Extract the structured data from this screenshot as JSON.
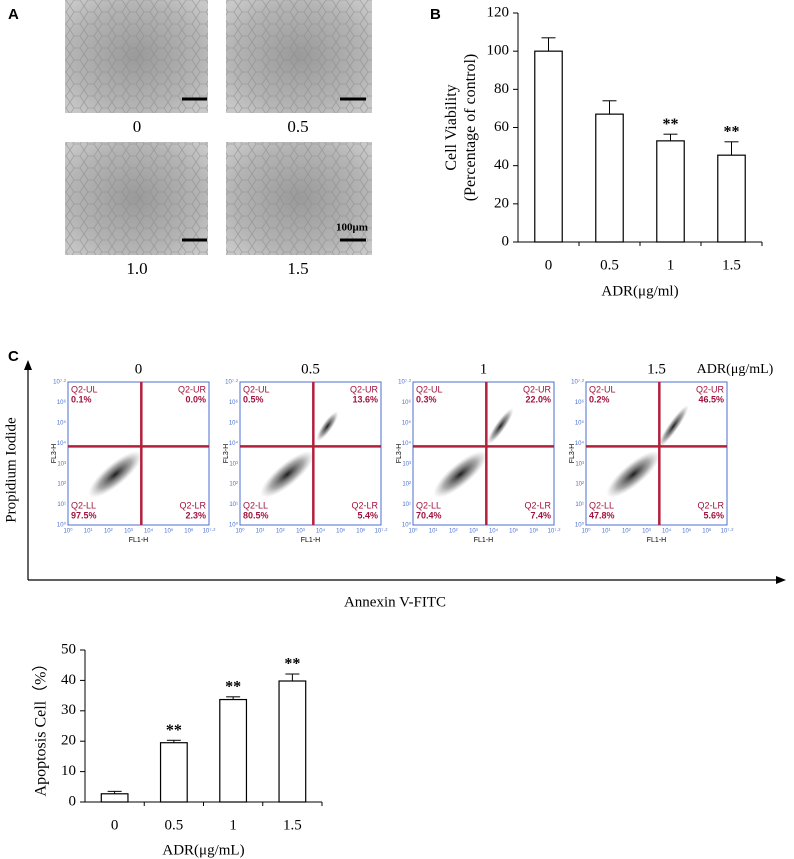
{
  "panel_A": {
    "letter": "A",
    "doses": [
      "0",
      "0.5",
      "1.0",
      "1.5"
    ],
    "scale_bar": "100μm"
  },
  "flow_panel": {
    "letter": "C",
    "dose_header": "ADR(μg/mL)",
    "y_axis": "Propidium Iodide",
    "x_axis": "Annexin V-FITC",
    "plot_y_label": "FL3-H",
    "plot_x_label": "FL1-H",
    "ticks": [
      "10⁰",
      "10¹",
      "10²",
      "10³",
      "10⁴",
      "10⁵",
      "10⁶",
      "10⁷·²"
    ],
    "plots": [
      {
        "dose": "0",
        "quadrants": {
          "UL": {
            "name": "Q2-UL",
            "value": "0.1%"
          },
          "UR": {
            "name": "Q2-UR",
            "value": "0.0%"
          },
          "LL": {
            "name": "Q2-LL",
            "value": "97.5%"
          },
          "LR": {
            "name": "Q2-LR",
            "value": "2.3%"
          }
        }
      },
      {
        "dose": "0.5",
        "quadrants": {
          "UL": {
            "name": "Q2-UL",
            "value": "0.5%"
          },
          "UR": {
            "name": "Q2-UR",
            "value": "13.6%"
          },
          "LL": {
            "name": "Q2-LL",
            "value": "80.5%"
          },
          "LR": {
            "name": "Q2-LR",
            "value": "5.4%"
          }
        }
      },
      {
        "dose": "1",
        "quadrants": {
          "UL": {
            "name": "Q2-UL",
            "value": "0.3%"
          },
          "UR": {
            "name": "Q2-UR",
            "value": "22.0%"
          },
          "LL": {
            "name": "Q2-LL",
            "value": "70.4%"
          },
          "LR": {
            "name": "Q2-LR",
            "value": "7.4%"
          }
        }
      },
      {
        "dose": "1.5",
        "quadrants": {
          "UL": {
            "name": "Q2-UL",
            "value": "0.2%"
          },
          "UR": {
            "name": "Q2-UR",
            "value": "46.5%"
          },
          "LL": {
            "name": "Q2-LL",
            "value": "47.8%"
          },
          "LR": {
            "name": "Q2-LR",
            "value": "5.6%"
          }
        }
      }
    ]
  },
  "chart_data": [
    {
      "type": "bar",
      "letter": "B",
      "categories": [
        "0",
        "0.5",
        "1",
        "1.5"
      ],
      "values": [
        100,
        67,
        53,
        45.5
      ],
      "errors": [
        7,
        7,
        3.5,
        7
      ],
      "significance": [
        null,
        null,
        "**",
        "**"
      ],
      "color": "#ffffff",
      "edge_color": "#000000",
      "ylabel": [
        "Cell Viability",
        "(Percentage of control)"
      ],
      "xlabel": "ADR(μg/ml)",
      "ylim": [
        0,
        120
      ],
      "yticks": [
        0,
        20,
        40,
        60,
        80,
        100,
        120
      ]
    },
    {
      "type": "bar",
      "categories": [
        "0",
        "0.5",
        "1",
        "1.5"
      ],
      "values": [
        2.7,
        19.5,
        33.7,
        39.8
      ],
      "errors": [
        0.8,
        0.8,
        0.9,
        2.3
      ],
      "significance": [
        null,
        "**",
        "**",
        "**"
      ],
      "color": "#ffffff",
      "edge_color": "#000000",
      "ylabel": [
        "Apoptosis Cell（%）"
      ],
      "xlabel": "ADR(μg/mL)",
      "ylim": [
        0,
        50
      ],
      "yticks": [
        0,
        10,
        20,
        30,
        40,
        50
      ]
    }
  ]
}
